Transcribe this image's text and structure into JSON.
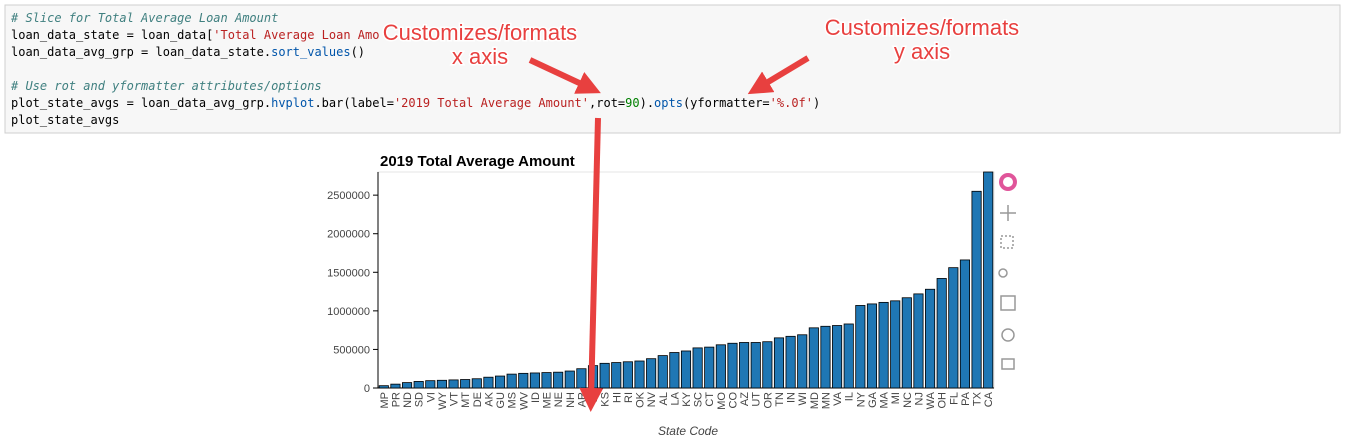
{
  "code": {
    "lines": [
      [
        "# Slice for Total Average Loan Amount"
      ],
      [
        "loan_data_state = loan_data[",
        "'Total Average Loan Amo"
      ],
      [
        "loan_data_avg_grp = loan_data_state.",
        "sort_values",
        "()"
      ],
      [
        "# Use rot and yformatter attributes/options"
      ],
      [
        "plot_state_avgs = loan_data_avg_grp.",
        "hvplot",
        ".bar(label=",
        "'2019 Total Average Amount'",
        ",rot=",
        "90",
        ").",
        "opts",
        "(yformatter=",
        "'%.0f'",
        ")"
      ],
      [
        "plot_state_avgs"
      ]
    ]
  },
  "annotations": [
    {
      "lines": [
        "Customizes/formats",
        "x axis"
      ]
    },
    {
      "lines": [
        "Customizes/formats",
        "y axis"
      ]
    }
  ],
  "chart_data": {
    "type": "bar",
    "title": "2019 Total Average Amount",
    "x_label": "State Code",
    "color": "#1f77b4",
    "categories": [
      "MP",
      "PR",
      "ND",
      "SD",
      "VI",
      "WY",
      "VT",
      "MT",
      "DE",
      "AK",
      "GU",
      "MS",
      "WV",
      "ID",
      "ME",
      "NE",
      "NH",
      "AR",
      "IA",
      "KS",
      "HI",
      "RI",
      "OK",
      "NV",
      "AL",
      "LA",
      "KY",
      "SC",
      "CT",
      "MO",
      "CO",
      "AZ",
      "UT",
      "OR",
      "TN",
      "IN",
      "WI",
      "MD",
      "MN",
      "VA",
      "IL",
      "NY",
      "GA",
      "MA",
      "MI",
      "NC",
      "NJ",
      "WA",
      "OH",
      "FL",
      "PA",
      "TX",
      "CA"
    ],
    "values": [
      30000,
      50000,
      70000,
      85000,
      95000,
      100000,
      105000,
      110000,
      120000,
      140000,
      155000,
      180000,
      190000,
      195000,
      200000,
      205000,
      220000,
      250000,
      290000,
      320000,
      330000,
      340000,
      350000,
      380000,
      420000,
      460000,
      480000,
      520000,
      530000,
      560000,
      580000,
      590000,
      590000,
      600000,
      650000,
      670000,
      690000,
      780000,
      800000,
      810000,
      830000,
      1070000,
      1090000,
      1110000,
      1130000,
      1170000,
      1220000,
      1280000,
      1420000,
      1560000,
      1660000,
      2550000,
      2800000
    ],
    "ylim": [
      0,
      2800000
    ],
    "yticks": [
      0,
      500000,
      1000000,
      1500000,
      2000000,
      2500000
    ]
  }
}
